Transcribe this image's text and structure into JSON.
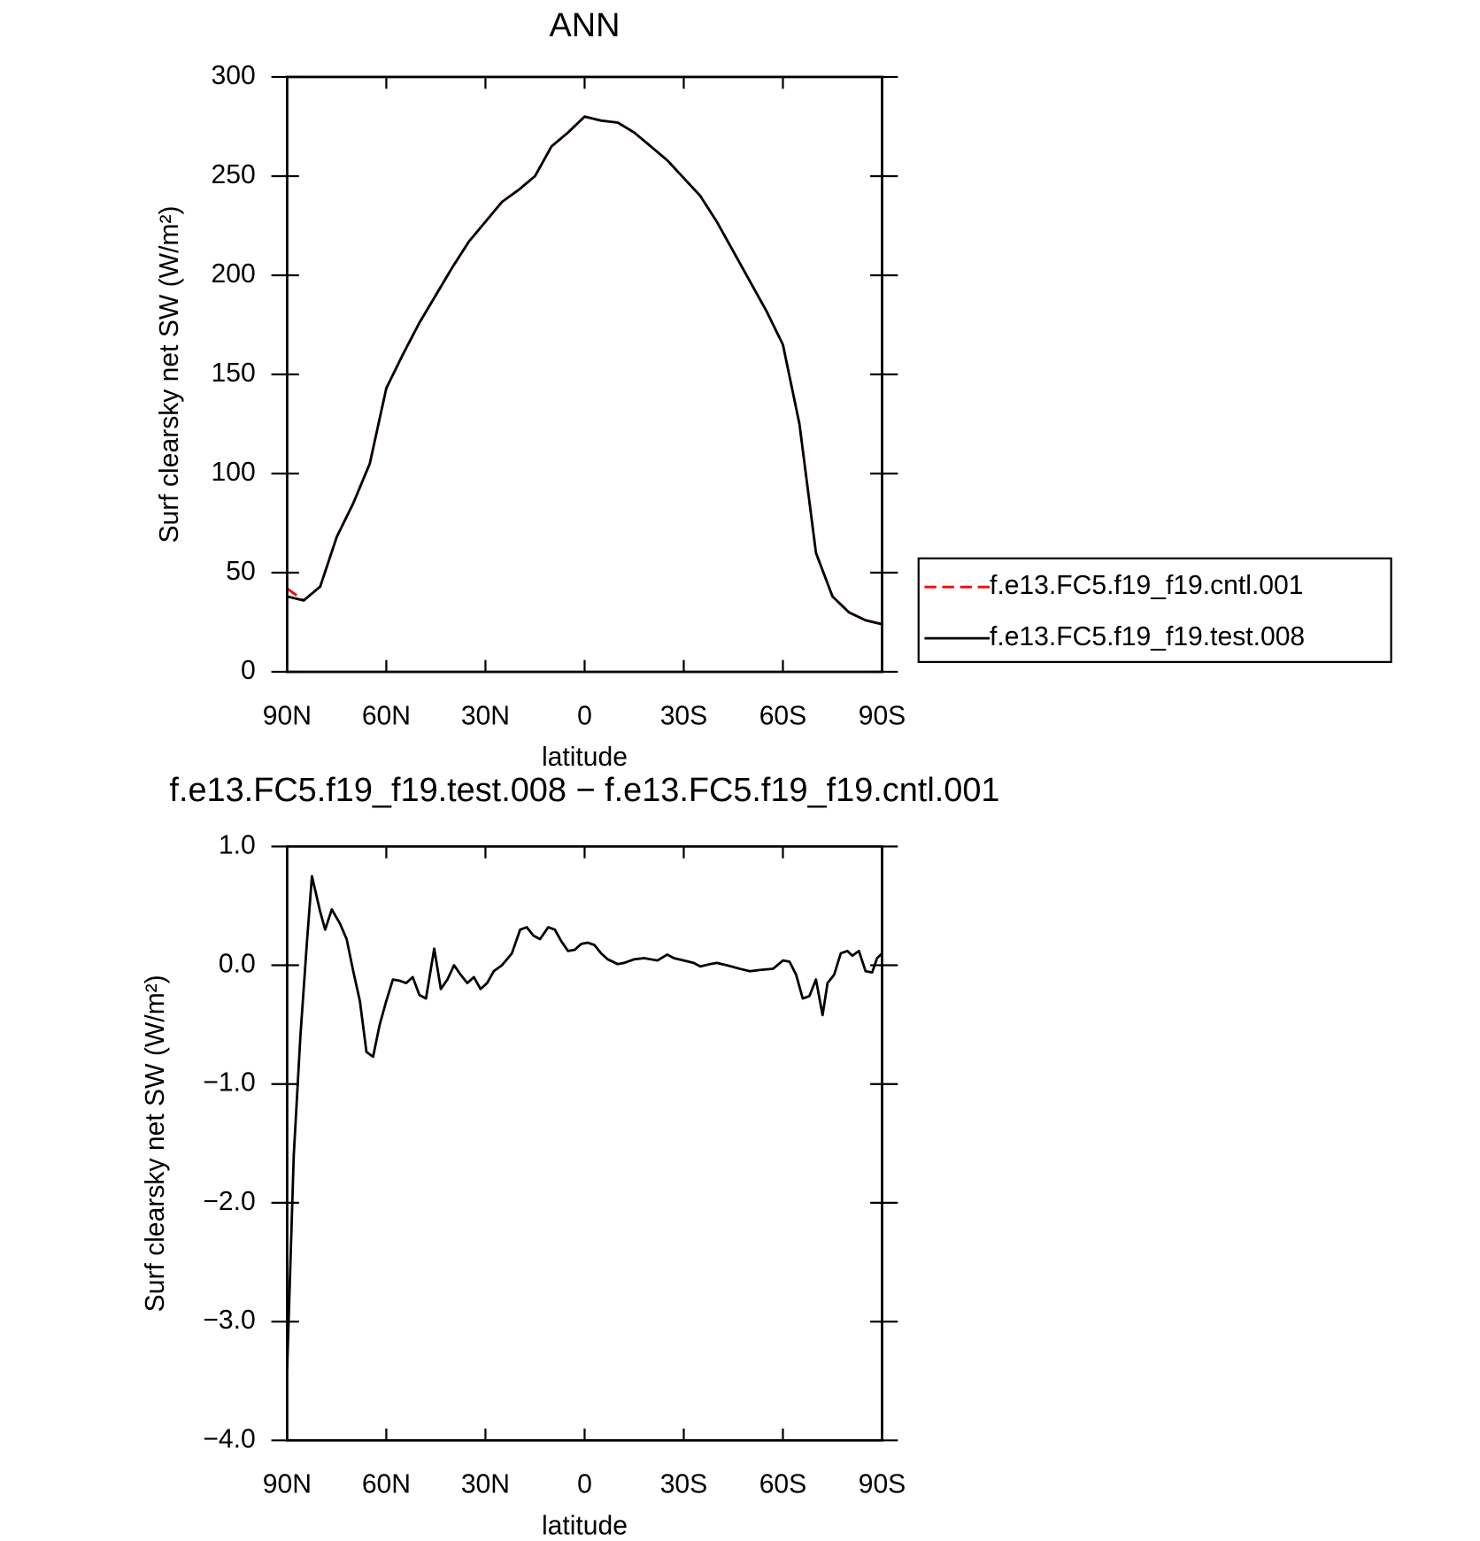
{
  "chart_data": [
    {
      "type": "line",
      "title": "ANN",
      "xlabel": "latitude",
      "ylabel": "Surf clearsky net SW (W/m²)",
      "x": [
        90,
        85,
        80,
        75,
        70,
        65,
        60,
        55,
        50,
        45,
        40,
        35,
        30,
        25,
        20,
        15,
        10,
        5,
        0,
        -5,
        -10,
        -15,
        -20,
        -25,
        -30,
        -35,
        -40,
        -45,
        -50,
        -55,
        -60,
        -65,
        -70,
        -75,
        -80,
        -85,
        -90
      ],
      "series": [
        {
          "name": "f.e13.FC5.f19_f19.cntl.001",
          "color": "#ff0000",
          "dashed": true,
          "values": [
            42,
            36,
            43,
            68,
            85,
            105,
            143,
            160,
            176,
            190,
            204,
            217,
            227,
            237,
            243,
            250,
            265,
            272,
            280,
            278,
            277,
            272,
            265,
            258,
            249,
            240,
            227,
            212,
            197,
            182,
            165,
            125,
            60,
            38,
            30,
            26,
            24
          ]
        },
        {
          "name": "f.e13.FC5.f19_f19.test.008",
          "color": "#000000",
          "dashed": false,
          "values": [
            38,
            36,
            43,
            68,
            85,
            105,
            143,
            160,
            176,
            190,
            204,
            217,
            227,
            237,
            243,
            250,
            265,
            272,
            280,
            278,
            277,
            272,
            265,
            258,
            249,
            240,
            227,
            212,
            197,
            182,
            165,
            125,
            60,
            38,
            30,
            26,
            24
          ]
        }
      ],
      "xlim": [
        90,
        -90
      ],
      "xticks": [
        {
          "value": 90,
          "label": "90N"
        },
        {
          "value": 60,
          "label": "60N"
        },
        {
          "value": 30,
          "label": "30N"
        },
        0,
        {
          "value": -30,
          "label": "30S"
        },
        {
          "value": -60,
          "label": "60S"
        },
        {
          "value": -90,
          "label": "90S"
        }
      ],
      "ylim": [
        0,
        300
      ],
      "yticks": [
        0,
        50,
        100,
        150,
        200,
        250,
        300
      ],
      "legend": "right"
    },
    {
      "type": "line",
      "title": "f.e13.FC5.f19_f19.test.008 − f.e13.FC5.f19_f19.cntl.001",
      "xlabel": "latitude",
      "ylabel": "Surf clearsky net SW (W/m²)",
      "x": [
        90,
        88,
        86,
        84,
        82.5,
        80,
        78.5,
        76.5,
        74,
        72,
        70,
        68,
        66,
        64,
        62,
        60,
        58,
        56,
        54,
        52,
        50,
        48,
        45.5,
        43.5,
        41.5,
        39.5,
        37.5,
        35.5,
        33.5,
        31.5,
        29.5,
        27.5,
        25,
        22,
        19.5,
        17.5,
        15.5,
        13.5,
        11,
        9,
        7,
        5,
        3,
        1,
        -1,
        -3,
        -5,
        -7,
        -10,
        -12,
        -15,
        -18,
        -20,
        -22,
        -25,
        -27,
        -30,
        -33,
        -35,
        -38,
        -40,
        -43,
        -47,
        -50,
        -53,
        -57,
        -60,
        -62,
        -64,
        -66,
        -68,
        -70,
        -72,
        -73.5,
        -75.5,
        -77.5,
        -79.5,
        -81,
        -83,
        -85,
        -87,
        -88.5,
        -90
      ],
      "series": [
        {
          "color": "#000000",
          "dashed": false,
          "values": [
            -3.4,
            -1.6,
            -0.6,
            0.2,
            0.75,
            0.45,
            0.3,
            0.47,
            0.35,
            0.22,
            -0.05,
            -0.3,
            -0.73,
            -0.77,
            -0.5,
            -0.3,
            -0.12,
            -0.13,
            -0.15,
            -0.1,
            -0.25,
            -0.28,
            0.14,
            -0.2,
            -0.12,
            0.0,
            -0.08,
            -0.15,
            -0.1,
            -0.2,
            -0.15,
            -0.05,
            0.0,
            0.1,
            0.3,
            0.32,
            0.25,
            0.22,
            0.32,
            0.3,
            0.2,
            0.12,
            0.13,
            0.18,
            0.19,
            0.17,
            0.1,
            0.05,
            0.01,
            0.02,
            0.05,
            0.06,
            0.05,
            0.04,
            0.09,
            0.06,
            0.04,
            0.02,
            -0.01,
            0.01,
            0.02,
            0.0,
            -0.03,
            -0.05,
            -0.04,
            -0.03,
            0.04,
            0.03,
            -0.08,
            -0.28,
            -0.26,
            -0.12,
            -0.42,
            -0.15,
            -0.08,
            0.1,
            0.12,
            0.08,
            0.12,
            -0.05,
            -0.06,
            0.06,
            0.1
          ]
        }
      ],
      "xlim": [
        90,
        -90
      ],
      "xticks": [
        {
          "value": 90,
          "label": "90N"
        },
        {
          "value": 60,
          "label": "60N"
        },
        {
          "value": 30,
          "label": "30N"
        },
        0,
        {
          "value": -30,
          "label": "30S"
        },
        {
          "value": -60,
          "label": "60S"
        },
        {
          "value": -90,
          "label": "90S"
        }
      ],
      "ylim": [
        -4,
        1
      ],
      "yticks": [
        {
          "value": -4,
          "label": "−4.0"
        },
        {
          "value": -3,
          "label": "−3.0"
        },
        {
          "value": -2,
          "label": "−2.0"
        },
        {
          "value": -1,
          "label": "−1.0"
        },
        {
          "value": 0,
          "label": "0.0"
        },
        {
          "value": 1,
          "label": "1.0"
        }
      ]
    }
  ]
}
